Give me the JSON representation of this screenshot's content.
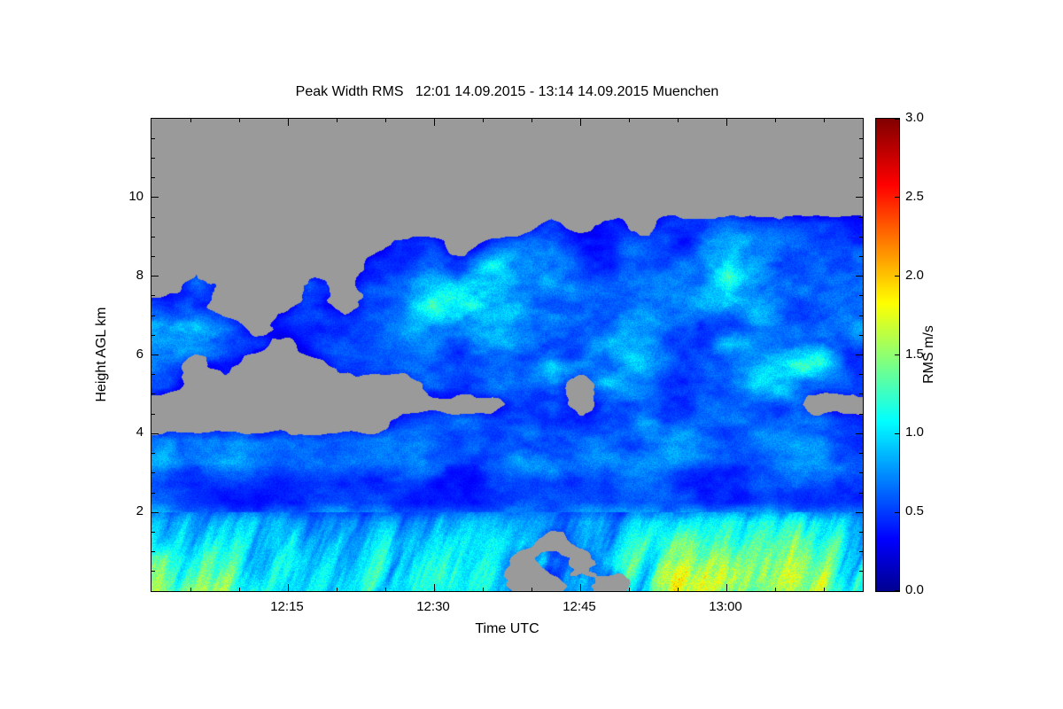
{
  "chart_data": {
    "type": "heatmap",
    "title": "Peak Width RMS   12:01 14.09.2015 - 13:14 14.09.2015 Muenchen",
    "station": "Muenchen",
    "time_start": "12:01 14.09.2015",
    "time_end": "13:14 14.09.2015",
    "xlabel": "Time UTC",
    "ylabel": "Height AGL km",
    "x_start": "12:01",
    "x_end": "13:14",
    "x_ticks": [
      "12:15",
      "12:30",
      "12:45",
      "13:00"
    ],
    "x_minor_step_minutes": 5,
    "y_range": [
      0,
      12
    ],
    "y_ticks": [
      2,
      4,
      6,
      8,
      10
    ],
    "y_minor_step": 0.5,
    "grid_on": false,
    "legend_position": "right-colorbar",
    "colorbar": {
      "label": "RMS m/s",
      "min": 0.0,
      "max": 3.0,
      "ticks": [
        "0.0",
        "0.5",
        "1.0",
        "1.5",
        "2.0",
        "2.5",
        "3.0"
      ],
      "colormap": "jet",
      "stops": [
        [
          0.0,
          "#00008f"
        ],
        [
          0.11,
          "#0000ff"
        ],
        [
          0.36,
          "#00ffff"
        ],
        [
          0.61,
          "#ffff00"
        ],
        [
          0.86,
          "#ff0000"
        ],
        [
          1.0,
          "#800000"
        ]
      ]
    },
    "no_data_color": "#9a9a9a",
    "grid": {
      "note": "Coarse RMS field in m/s read from the image; rows bottom-to-top, 0.5 km per row (0-12 km), 24 columns spanning 12:01-13:14 (~3 min per column); null = no data (gray)",
      "row_height_km": 0.5,
      "values": [
        [
          1.5,
          1.3,
          1.2,
          1.1,
          1.1,
          1.2,
          1.1,
          1.0,
          1.1,
          1.0,
          1.1,
          0.9,
          null,
          null,
          1.0,
          null,
          1.1,
          1.4,
          1.5,
          1.3,
          1.2,
          1.4,
          1.3,
          1.2
        ],
        [
          1.4,
          1.2,
          1.1,
          1.0,
          1.1,
          1.1,
          1.0,
          1.0,
          1.0,
          1.0,
          1.0,
          0.9,
          null,
          0.9,
          null,
          1.0,
          1.1,
          1.2,
          1.3,
          1.2,
          1.1,
          1.3,
          1.2,
          1.1
        ],
        [
          1.1,
          1.0,
          1.0,
          0.9,
          1.0,
          1.0,
          0.9,
          0.9,
          1.0,
          0.9,
          0.9,
          0.9,
          0.8,
          null,
          0.8,
          0.9,
          1.0,
          1.1,
          1.1,
          1.0,
          1.0,
          1.1,
          1.1,
          1.0
        ],
        [
          0.9,
          0.8,
          0.8,
          0.8,
          0.8,
          0.8,
          0.8,
          0.8,
          0.8,
          0.8,
          0.8,
          0.8,
          0.7,
          0.7,
          0.8,
          0.8,
          0.9,
          0.9,
          0.9,
          0.9,
          0.9,
          1.0,
          0.9,
          0.9
        ],
        [
          0.5,
          0.45,
          0.4,
          0.4,
          0.4,
          0.4,
          0.4,
          0.4,
          0.4,
          0.4,
          0.45,
          0.45,
          0.5,
          0.5,
          0.45,
          0.4,
          0.45,
          0.5,
          0.45,
          0.4,
          0.45,
          0.5,
          0.45,
          0.45
        ],
        [
          0.5,
          0.45,
          0.4,
          0.4,
          0.4,
          0.4,
          0.4,
          0.4,
          0.45,
          0.4,
          0.45,
          0.5,
          0.55,
          0.5,
          0.45,
          0.45,
          0.5,
          0.5,
          0.45,
          0.45,
          0.5,
          0.5,
          0.5,
          0.45
        ],
        [
          0.9,
          0.8,
          0.7,
          0.6,
          0.6,
          0.6,
          0.6,
          0.6,
          0.6,
          0.6,
          0.6,
          0.7,
          0.8,
          0.7,
          0.6,
          0.6,
          0.6,
          0.7,
          0.6,
          0.6,
          0.6,
          0.7,
          0.6,
          0.6
        ],
        [
          0.8,
          0.7,
          0.7,
          0.6,
          0.6,
          0.6,
          0.6,
          0.55,
          0.6,
          0.6,
          0.6,
          0.7,
          0.7,
          0.7,
          0.6,
          0.6,
          0.6,
          0.6,
          0.6,
          0.55,
          0.6,
          0.6,
          0.55,
          0.5
        ],
        [
          null,
          null,
          null,
          null,
          null,
          null,
          null,
          null,
          0.5,
          0.55,
          0.6,
          0.6,
          0.7,
          0.7,
          0.6,
          0.6,
          0.9,
          0.7,
          0.6,
          0.55,
          0.6,
          0.6,
          0.5,
          0.4
        ],
        [
          null,
          null,
          null,
          null,
          null,
          null,
          null,
          null,
          null,
          null,
          null,
          null,
          0.6,
          0.6,
          null,
          0.6,
          0.7,
          0.6,
          0.6,
          0.55,
          0.6,
          0.6,
          null,
          null
        ],
        [
          0.5,
          null,
          null,
          null,
          null,
          null,
          null,
          null,
          null,
          0.5,
          0.6,
          0.7,
          0.6,
          0.7,
          null,
          0.9,
          0.7,
          0.6,
          0.6,
          0.6,
          0.9,
          0.7,
          0.6,
          0.5
        ],
        [
          0.6,
          null,
          0.5,
          null,
          null,
          null,
          0.4,
          0.5,
          0.5,
          0.55,
          0.6,
          0.7,
          0.6,
          1.0,
          0.7,
          0.6,
          0.9,
          0.7,
          0.6,
          0.6,
          0.7,
          1.0,
          1.1,
          0.6
        ],
        [
          0.6,
          0.8,
          0.7,
          0.5,
          null,
          0.4,
          0.5,
          0.5,
          0.55,
          0.6,
          0.6,
          1.0,
          0.7,
          0.6,
          0.6,
          0.9,
          0.7,
          0.6,
          0.6,
          0.9,
          0.7,
          0.6,
          0.7,
          0.6
        ],
        [
          0.7,
          1.0,
          0.7,
          null,
          0.4,
          0.5,
          0.5,
          0.5,
          0.6,
          0.7,
          1.1,
          0.7,
          0.6,
          0.6,
          0.7,
          0.7,
          0.6,
          0.8,
          0.6,
          0.6,
          0.7,
          0.6,
          0.7,
          0.6
        ],
        [
          0.5,
          0.7,
          null,
          null,
          null,
          0.5,
          null,
          0.5,
          0.6,
          1.2,
          1.3,
          0.8,
          0.8,
          0.6,
          0.6,
          0.6,
          0.6,
          0.6,
          0.8,
          0.7,
          0.9,
          0.6,
          0.6,
          0.6
        ],
        [
          null,
          0.6,
          null,
          null,
          null,
          0.6,
          null,
          0.5,
          0.6,
          1.0,
          1.1,
          0.7,
          0.6,
          0.8,
          0.6,
          0.55,
          0.6,
          0.6,
          0.6,
          1.0,
          0.7,
          0.7,
          0.6,
          0.6
        ],
        [
          null,
          null,
          null,
          null,
          null,
          null,
          null,
          0.5,
          0.5,
          0.6,
          0.7,
          0.9,
          0.6,
          0.55,
          0.7,
          0.5,
          0.5,
          0.55,
          0.6,
          1.1,
          0.8,
          0.6,
          0.6,
          0.55
        ],
        [
          null,
          null,
          null,
          null,
          null,
          null,
          null,
          null,
          0.4,
          0.5,
          null,
          0.5,
          0.5,
          0.6,
          0.5,
          0.5,
          0.5,
          0.5,
          0.6,
          0.8,
          0.6,
          0.6,
          0.6,
          0.55
        ],
        [
          null,
          null,
          null,
          null,
          null,
          null,
          null,
          null,
          null,
          null,
          null,
          null,
          null,
          0.4,
          null,
          0.4,
          null,
          0.5,
          0.5,
          0.5,
          0.5,
          0.55,
          0.5,
          0.5
        ],
        [
          null,
          null,
          null,
          null,
          null,
          null,
          null,
          null,
          null,
          null,
          null,
          null,
          null,
          null,
          null,
          null,
          null,
          null,
          null,
          null,
          null,
          null,
          null,
          null
        ],
        [
          null,
          null,
          null,
          null,
          null,
          null,
          null,
          null,
          null,
          null,
          null,
          null,
          null,
          null,
          null,
          null,
          null,
          null,
          null,
          null,
          null,
          null,
          null,
          null
        ],
        [
          null,
          null,
          null,
          null,
          null,
          null,
          null,
          null,
          null,
          null,
          null,
          null,
          null,
          null,
          null,
          null,
          null,
          null,
          null,
          null,
          null,
          null,
          null,
          null
        ],
        [
          null,
          null,
          null,
          null,
          null,
          null,
          null,
          null,
          null,
          null,
          null,
          null,
          null,
          null,
          null,
          null,
          null,
          null,
          null,
          null,
          null,
          null,
          null,
          null
        ],
        [
          null,
          null,
          null,
          null,
          null,
          null,
          null,
          null,
          null,
          null,
          null,
          null,
          null,
          null,
          null,
          null,
          null,
          null,
          null,
          null,
          null,
          null,
          null,
          null
        ]
      ]
    }
  }
}
